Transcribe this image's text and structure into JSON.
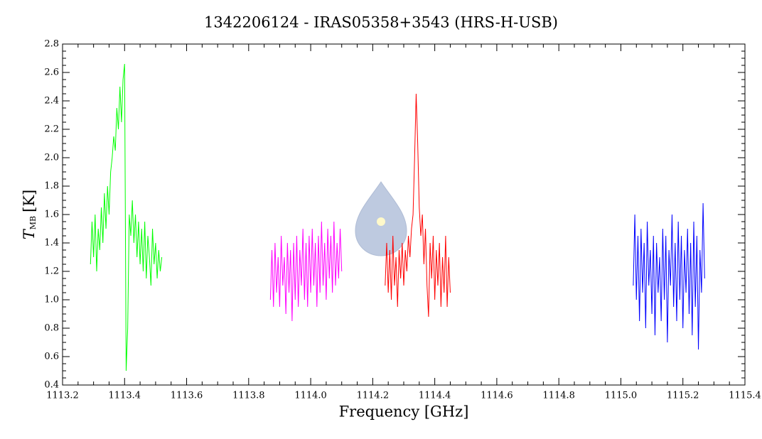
{
  "chart_data": {
    "type": "line",
    "title": "1342206124 - IRAS05358+3543 (HRS-H-USB)",
    "xlabel": "Frequency [GHz]",
    "ylabel": {
      "symbol": "T",
      "subscript": "MB",
      "unit": "[K]"
    },
    "xlim": [
      1113.2,
      1115.4
    ],
    "xticks": [
      1113.2,
      1113.4,
      1113.6,
      1113.8,
      {
        "value": 1114,
        "label": "1114.0"
      },
      1114.2,
      1114.4,
      1114.6,
      1114.8,
      {
        "value": 1115,
        "label": "1115.0"
      },
      1115.2,
      1115.4
    ],
    "ylim": [
      0.4,
      2.8
    ],
    "yticks": [
      0.4,
      0.6,
      0.8,
      {
        "value": 1,
        "label": "1.0"
      },
      1.2,
      1.4,
      1.6,
      1.8,
      {
        "value": 2,
        "label": "2.0"
      },
      2.2,
      2.4,
      2.6,
      2.8
    ],
    "series": [
      {
        "color": "#00ff00",
        "x": [
          1113.29,
          1113.295,
          1113.3,
          1113.305,
          1113.31,
          1113.315,
          1113.32,
          1113.325,
          1113.33,
          1113.335,
          1113.34,
          1113.345,
          1113.35,
          1113.355,
          1113.36,
          1113.365,
          1113.37,
          1113.375,
          1113.38,
          1113.385,
          1113.39,
          1113.395,
          1113.4,
          1113.405,
          1113.41,
          1113.415,
          1113.42,
          1113.425,
          1113.43,
          1113.435,
          1113.44,
          1113.445,
          1113.45,
          1113.455,
          1113.46,
          1113.465,
          1113.47,
          1113.475,
          1113.48,
          1113.485,
          1113.49,
          1113.495,
          1113.5,
          1113.505,
          1113.51,
          1113.515,
          1113.52
        ],
        "values": [
          1.25,
          1.55,
          1.3,
          1.6,
          1.2,
          1.5,
          1.35,
          1.65,
          1.4,
          1.75,
          1.5,
          1.8,
          1.6,
          1.9,
          2.0,
          2.15,
          2.05,
          2.35,
          2.2,
          2.5,
          2.25,
          2.55,
          2.66,
          0.5,
          0.8,
          1.6,
          1.45,
          1.7,
          1.4,
          1.6,
          1.3,
          1.55,
          1.25,
          1.5,
          1.2,
          1.55,
          1.15,
          1.45,
          1.3,
          1.1,
          1.5,
          1.25,
          1.4,
          1.15,
          1.35,
          1.2,
          1.3
        ]
      },
      {
        "color": "#ff00ff",
        "x": [
          1113.87,
          1113.875,
          1113.88,
          1113.885,
          1113.89,
          1113.895,
          1113.9,
          1113.905,
          1113.91,
          1113.915,
          1113.92,
          1113.925,
          1113.93,
          1113.935,
          1113.94,
          1113.945,
          1113.95,
          1113.955,
          1113.96,
          1113.965,
          1113.97,
          1113.975,
          1113.98,
          1113.985,
          1113.99,
          1113.995,
          1114.0,
          1114.005,
          1114.01,
          1114.015,
          1114.02,
          1114.025,
          1114.03,
          1114.035,
          1114.04,
          1114.045,
          1114.05,
          1114.055,
          1114.06,
          1114.065,
          1114.07,
          1114.075,
          1114.08,
          1114.085,
          1114.09,
          1114.095,
          1114.1
        ],
        "values": [
          1.0,
          1.35,
          0.95,
          1.4,
          1.05,
          1.3,
          0.95,
          1.45,
          1.1,
          1.3,
          0.9,
          1.4,
          1.05,
          1.35,
          0.85,
          1.4,
          1.0,
          1.45,
          0.95,
          1.35,
          1.1,
          1.5,
          1.0,
          1.4,
          0.95,
          1.45,
          1.05,
          1.5,
          1.1,
          1.4,
          0.95,
          1.45,
          1.05,
          1.55,
          1.1,
          1.4,
          1.0,
          1.5,
          1.15,
          1.45,
          1.05,
          1.55,
          1.1,
          1.4,
          1.15,
          1.5,
          1.2
        ]
      },
      {
        "color": "#ff0000",
        "x": [
          1114.24,
          1114.245,
          1114.25,
          1114.255,
          1114.26,
          1114.265,
          1114.27,
          1114.275,
          1114.28,
          1114.285,
          1114.29,
          1114.295,
          1114.3,
          1114.305,
          1114.31,
          1114.315,
          1114.32,
          1114.325,
          1114.33,
          1114.335,
          1114.34,
          1114.345,
          1114.35,
          1114.355,
          1114.36,
          1114.365,
          1114.37,
          1114.375,
          1114.38,
          1114.385,
          1114.39,
          1114.395,
          1114.4,
          1114.405,
          1114.41,
          1114.415,
          1114.42,
          1114.425,
          1114.43,
          1114.435,
          1114.44,
          1114.445,
          1114.45
        ],
        "values": [
          1.1,
          1.4,
          1.05,
          1.35,
          1.0,
          1.45,
          1.1,
          1.3,
          0.95,
          1.35,
          1.15,
          1.4,
          1.1,
          1.35,
          1.2,
          1.45,
          1.3,
          1.5,
          1.6,
          2.0,
          2.45,
          2.1,
          1.65,
          1.45,
          1.6,
          1.25,
          1.5,
          1.1,
          0.88,
          1.4,
          1.15,
          1.45,
          1.0,
          1.35,
          1.1,
          1.4,
          0.95,
          1.3,
          1.05,
          1.45,
          0.95,
          1.3,
          1.05
        ]
      },
      {
        "color": "#0000ff",
        "x": [
          1115.04,
          1115.045,
          1115.05,
          1115.055,
          1115.06,
          1115.065,
          1115.07,
          1115.075,
          1115.08,
          1115.085,
          1115.09,
          1115.095,
          1115.1,
          1115.105,
          1115.11,
          1115.115,
          1115.12,
          1115.125,
          1115.13,
          1115.135,
          1115.14,
          1115.145,
          1115.15,
          1115.155,
          1115.16,
          1115.165,
          1115.17,
          1115.175,
          1115.18,
          1115.185,
          1115.19,
          1115.195,
          1115.2,
          1115.205,
          1115.21,
          1115.215,
          1115.22,
          1115.225,
          1115.23,
          1115.235,
          1115.24,
          1115.245,
          1115.25,
          1115.255,
          1115.26,
          1115.265,
          1115.27
        ],
        "values": [
          1.1,
          1.6,
          1.0,
          1.45,
          0.85,
          1.5,
          1.05,
          1.4,
          0.8,
          1.55,
          1.1,
          1.35,
          0.9,
          1.45,
          0.75,
          1.4,
          1.05,
          1.3,
          0.85,
          1.5,
          1.0,
          1.45,
          0.7,
          1.35,
          1.1,
          1.6,
          0.95,
          1.4,
          0.85,
          1.55,
          1.0,
          1.45,
          0.8,
          1.35,
          1.05,
          1.5,
          0.9,
          1.4,
          0.75,
          1.55,
          0.95,
          1.45,
          0.65,
          1.35,
          1.05,
          1.68,
          1.15
        ]
      }
    ]
  }
}
